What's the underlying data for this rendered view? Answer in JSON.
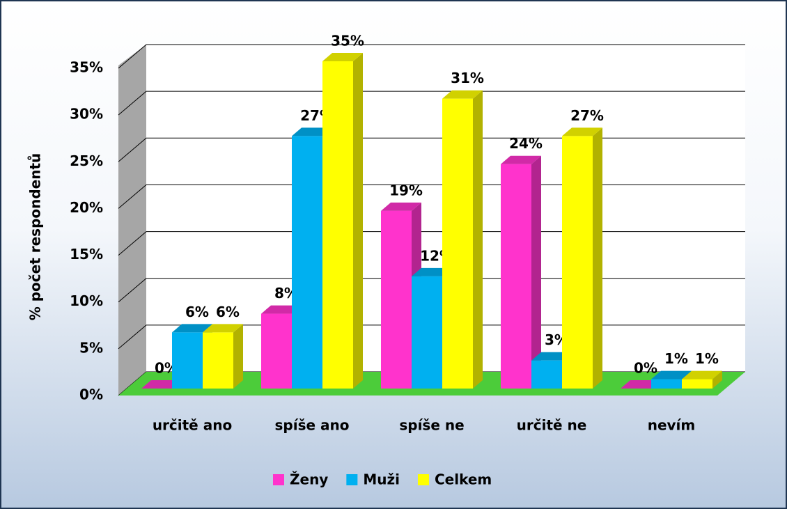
{
  "chart_data": {
    "type": "bar3d",
    "y_label": "% počet respondentů",
    "categories": [
      "určitě ano",
      "spíše ano",
      "spíše ne",
      "určitě ne",
      "nevím"
    ],
    "series": [
      {
        "name": "Ženy",
        "color": "#ff33cc",
        "values": [
          0,
          8,
          19,
          24,
          0
        ],
        "value_labels": [
          "0%",
          "8%",
          "19%",
          "24%",
          "0%"
        ]
      },
      {
        "name": "Muži",
        "color": "#00b0f0",
        "values": [
          6,
          27,
          12,
          3,
          1
        ],
        "value_labels": [
          "6%",
          "27%",
          "12%",
          "3%",
          "1%"
        ]
      },
      {
        "name": "Celkem",
        "color": "#ffff00",
        "values": [
          6,
          35,
          31,
          27,
          1
        ],
        "value_labels": [
          "6%",
          "35%",
          "31%",
          "27%",
          "1%"
        ]
      }
    ],
    "ylim": [
      0,
      35
    ],
    "yticks": [
      {
        "value": 0,
        "label": "0%"
      },
      {
        "value": 5,
        "label": "5%"
      },
      {
        "value": 10,
        "label": "10%"
      },
      {
        "value": 15,
        "label": "15%"
      },
      {
        "value": 20,
        "label": "20%"
      },
      {
        "value": 25,
        "label": "25%"
      },
      {
        "value": 30,
        "label": "30%"
      },
      {
        "value": 35,
        "label": "35%"
      }
    ],
    "grid": true,
    "legend": "bottom"
  }
}
